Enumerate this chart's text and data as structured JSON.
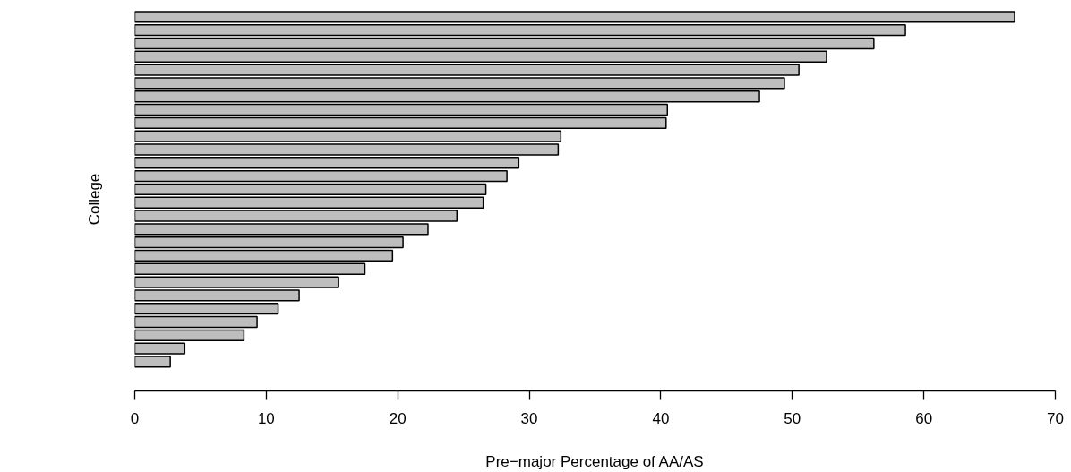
{
  "chart_data": {
    "type": "bar",
    "orientation": "horizontal",
    "xlabel": "Pre−major Percentage of AA/AS",
    "ylabel": "College",
    "categories": [
      null,
      null,
      null,
      null,
      null,
      null,
      null,
      null,
      null,
      null,
      null,
      null,
      null,
      null,
      null,
      null,
      null,
      null,
      null,
      null,
      null,
      null,
      null,
      null,
      null,
      null,
      null
    ],
    "values": [
      66.9,
      58.6,
      56.2,
      52.6,
      50.5,
      49.4,
      47.5,
      40.5,
      40.4,
      32.4,
      32.2,
      29.2,
      28.3,
      26.7,
      26.5,
      24.5,
      22.3,
      20.4,
      19.6,
      17.5,
      15.5,
      12.5,
      10.9,
      9.3,
      8.3,
      3.8,
      2.7
    ],
    "color": "#bebebe",
    "xlim": [
      0,
      70
    ],
    "xticks": [
      0,
      10,
      20,
      30,
      40,
      50,
      60,
      70
    ],
    "grid": false,
    "tick_labels": "x"
  }
}
